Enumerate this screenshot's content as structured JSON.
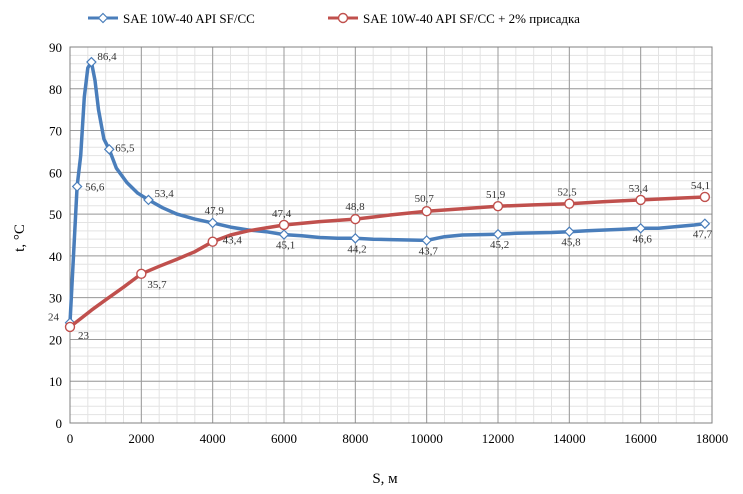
{
  "chart_data": {
    "type": "line",
    "title": "",
    "xlabel": "S, м",
    "ylabel": "t, °C",
    "xlim": [
      0,
      18000
    ],
    "ylim": [
      0,
      90
    ],
    "xticks": [
      "0",
      "2000",
      "4000",
      "6000",
      "8000",
      "10000",
      "12000",
      "14000",
      "16000",
      "18000"
    ],
    "yticks": [
      "0",
      "10",
      "20",
      "30",
      "40",
      "50",
      "60",
      "70",
      "80",
      "90"
    ],
    "grid": true,
    "legend_position": "top",
    "series": [
      {
        "name": "SAE 10W-40 API SF/CC",
        "color": "#4a7ebb",
        "marker": "diamond",
        "line": [
          [
            0,
            24
          ],
          [
            200,
            56.6
          ],
          [
            300,
            64
          ],
          [
            400,
            78
          ],
          [
            500,
            85
          ],
          [
            600,
            86.4
          ],
          [
            700,
            82
          ],
          [
            800,
            75
          ],
          [
            950,
            68
          ],
          [
            1100,
            65.5
          ],
          [
            1300,
            61
          ],
          [
            1600,
            57.5
          ],
          [
            1900,
            55
          ],
          [
            2200,
            53.4
          ],
          [
            2600,
            51.5
          ],
          [
            3000,
            50
          ],
          [
            3500,
            48.8
          ],
          [
            4000,
            47.9
          ],
          [
            4500,
            46.9
          ],
          [
            5000,
            46.2
          ],
          [
            5500,
            45.8
          ],
          [
            6000,
            45.1
          ],
          [
            6500,
            44.8
          ],
          [
            7000,
            44.4
          ],
          [
            7500,
            44.2
          ],
          [
            8000,
            44.2
          ],
          [
            8500,
            44
          ],
          [
            9000,
            43.9
          ],
          [
            9500,
            43.8
          ],
          [
            10000,
            43.7
          ],
          [
            10500,
            44.6
          ],
          [
            11000,
            45
          ],
          [
            11500,
            45.1
          ],
          [
            12000,
            45.2
          ],
          [
            12500,
            45.4
          ],
          [
            13000,
            45.5
          ],
          [
            13500,
            45.6
          ],
          [
            14000,
            45.8
          ],
          [
            14500,
            46
          ],
          [
            15000,
            46.2
          ],
          [
            15500,
            46.4
          ],
          [
            16000,
            46.6
          ],
          [
            16500,
            46.6
          ],
          [
            17000,
            47
          ],
          [
            17500,
            47.4
          ],
          [
            17800,
            47.7
          ]
        ],
        "points": [
          {
            "x": 0,
            "y": 24,
            "label": "24"
          },
          {
            "x": 200,
            "y": 56.6,
            "label": "56,6"
          },
          {
            "x": 600,
            "y": 86.4,
            "label": "86,4"
          },
          {
            "x": 1100,
            "y": 65.5,
            "label": "65,5"
          },
          {
            "x": 2200,
            "y": 53.4,
            "label": "53,4"
          },
          {
            "x": 4000,
            "y": 47.9,
            "label": "47,9"
          },
          {
            "x": 6000,
            "y": 45.1,
            "label": "45,1"
          },
          {
            "x": 8000,
            "y": 44.2,
            "label": "44,2"
          },
          {
            "x": 10000,
            "y": 43.7,
            "label": "43,7"
          },
          {
            "x": 12000,
            "y": 45.2,
            "label": "45,2"
          },
          {
            "x": 14000,
            "y": 45.8,
            "label": "45,8"
          },
          {
            "x": 16000,
            "y": 46.6,
            "label": "46,6"
          },
          {
            "x": 17800,
            "y": 47.7,
            "label": "47,7"
          }
        ]
      },
      {
        "name": "SAE 10W-40 API SF/CC + 2% присадка",
        "color": "#c0504d",
        "marker": "circle",
        "line": [
          [
            0,
            23
          ],
          [
            300,
            25
          ],
          [
            600,
            27
          ],
          [
            1000,
            29.5
          ],
          [
            1500,
            32.5
          ],
          [
            2000,
            35.7
          ],
          [
            2500,
            37.5
          ],
          [
            3000,
            39.2
          ],
          [
            3500,
            41
          ],
          [
            4000,
            43.4
          ],
          [
            4500,
            45
          ],
          [
            5000,
            46
          ],
          [
            5500,
            46.7
          ],
          [
            6000,
            47.4
          ],
          [
            7000,
            48.2
          ],
          [
            8000,
            48.8
          ],
          [
            9000,
            49.8
          ],
          [
            10000,
            50.7
          ],
          [
            11000,
            51.3
          ],
          [
            12000,
            51.9
          ],
          [
            13000,
            52.2
          ],
          [
            14000,
            52.5
          ],
          [
            15000,
            53
          ],
          [
            16000,
            53.4
          ],
          [
            17000,
            53.8
          ],
          [
            17800,
            54.1
          ]
        ],
        "points": [
          {
            "x": 0,
            "y": 23,
            "label": "23"
          },
          {
            "x": 2000,
            "y": 35.7,
            "label": "35,7"
          },
          {
            "x": 4000,
            "y": 43.4,
            "label": "43,4"
          },
          {
            "x": 6000,
            "y": 47.4,
            "label": "47,4"
          },
          {
            "x": 8000,
            "y": 48.8,
            "label": "48,8"
          },
          {
            "x": 10000,
            "y": 50.7,
            "label": "50,7"
          },
          {
            "x": 12000,
            "y": 51.9,
            "label": "51,9"
          },
          {
            "x": 14000,
            "y": 52.5,
            "label": "52,5"
          },
          {
            "x": 16000,
            "y": 53.4,
            "label": "53,4"
          },
          {
            "x": 17800,
            "y": 54.1,
            "label": "54,1"
          }
        ]
      }
    ]
  }
}
